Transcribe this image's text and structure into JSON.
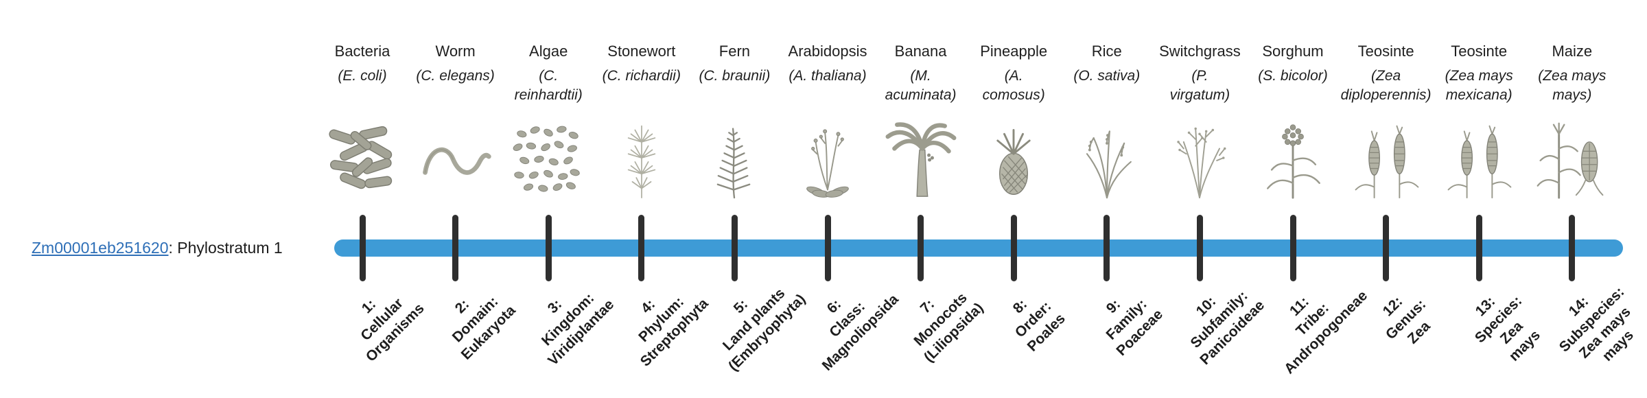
{
  "row_label": {
    "gene_id": "Zm00001eb251620",
    "suffix": ": Phylostratum 1",
    "link_color": "#2e6fb7"
  },
  "timeline": {
    "bar_color": "#3e9bd6",
    "tick_color": "#2f2f2f"
  },
  "columns": [
    {
      "common": "Bacteria",
      "scientific": "(E. coli)",
      "icon": "bacteria-icon",
      "stratum": "1:\nCellular\nOrganisms"
    },
    {
      "common": "Worm",
      "scientific": "(C. elegans)",
      "icon": "worm-icon",
      "stratum": "2:\nDomain:\nEukaryota"
    },
    {
      "common": "Algae",
      "scientific": "(C.\nreinhardtii)",
      "icon": "algae-icon",
      "stratum": "3:\nKingdom:\nViridiplantae"
    },
    {
      "common": "Stonewort",
      "scientific": "(C. richardii)",
      "icon": "stonewort-icon",
      "stratum": "4:\nPhylum:\nStreptophyta"
    },
    {
      "common": "Fern",
      "scientific": "(C. braunii)",
      "icon": "fern-icon",
      "stratum": "5:\nLand plants\n(Embryophyta)"
    },
    {
      "common": "Arabidopsis",
      "scientific": "(A. thaliana)",
      "icon": "arabidopsis-icon",
      "stratum": "6:\nClass:\nMagnoliopsida"
    },
    {
      "common": "Banana",
      "scientific": "(M.\nacuminata)",
      "icon": "banana-icon",
      "stratum": "7:\nMonocots\n(Liliopsida)"
    },
    {
      "common": "Pineapple",
      "scientific": "(A.\ncomosus)",
      "icon": "pineapple-icon",
      "stratum": "8:\nOrder:\nPoales"
    },
    {
      "common": "Rice",
      "scientific": "(O. sativa)",
      "icon": "rice-icon",
      "stratum": "9:\nFamily:\nPoaceae"
    },
    {
      "common": "Switchgrass",
      "scientific": "(P.\nvirgatum)",
      "icon": "switchgrass-icon",
      "stratum": "10:\nSubfamily:\nPanicoideae"
    },
    {
      "common": "Sorghum",
      "scientific": "(S. bicolor)",
      "icon": "sorghum-icon",
      "stratum": "11:\nTribe:\nAndropogoneae"
    },
    {
      "common": "Teosinte",
      "scientific": "(Zea\ndiploperennis)",
      "icon": "teosinte-icon",
      "stratum": "12:\nGenus:\nZea"
    },
    {
      "common": "Teosinte",
      "scientific": "(Zea mays\nmexicana)",
      "icon": "teosinte-icon",
      "stratum": "13:\nSpecies:\nZea\nmays"
    },
    {
      "common": "Maize",
      "scientific": "(Zea mays\nmays)",
      "icon": "maize-icon",
      "stratum": "14:\nSubspecies:\nZea mays\nmays"
    }
  ]
}
